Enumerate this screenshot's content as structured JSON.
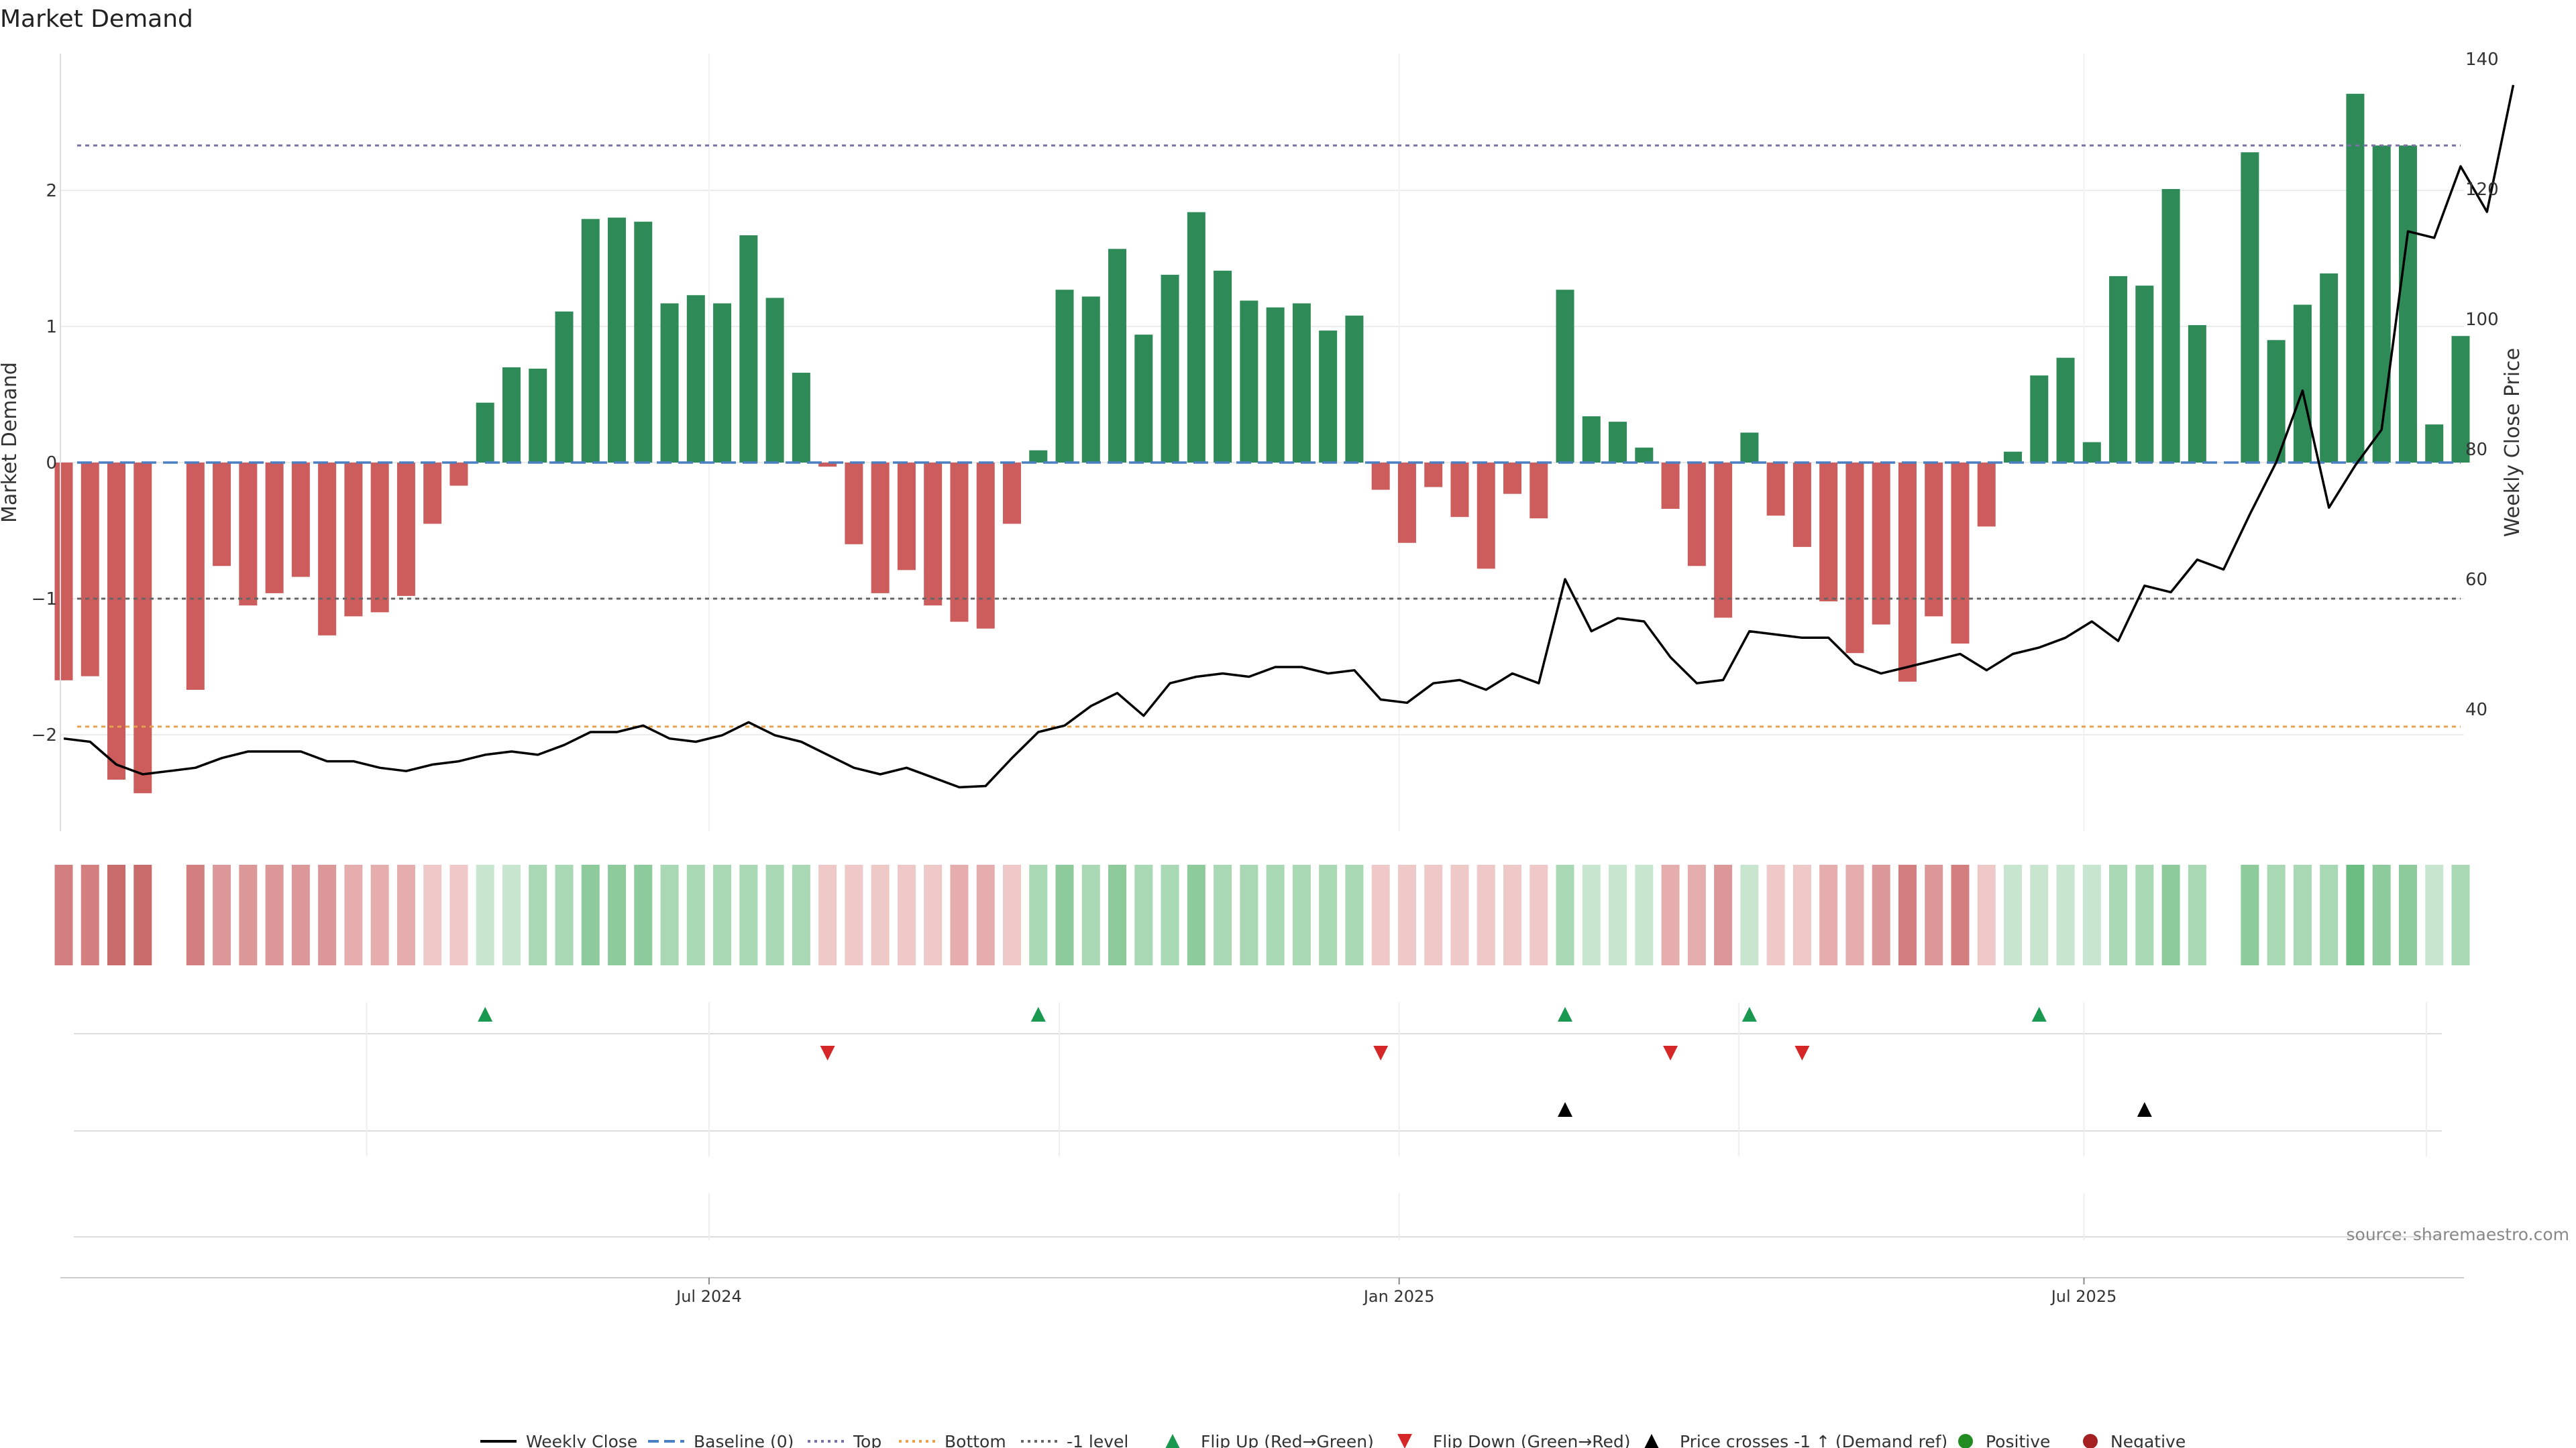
{
  "colors": {
    "positive": "#2e8b57",
    "negative": "#cd5c5c",
    "line": "#000000",
    "baseline": "#4a7fc1",
    "top": "#7b6fa8",
    "bottom": "#e8a04a",
    "minus_one": "#666666",
    "flip_up": "#1a9850",
    "flip_down": "#d62728",
    "cross": "#000000",
    "legend_pos": "#228b22",
    "legend_neg": "#a52020",
    "grid": "#ececec"
  },
  "chart_data": {
    "type": "bar+line",
    "title": "Market Demand",
    "ylabel_left": "Market Demand",
    "ylabel_right": "Weekly Close Price",
    "ylim_left": [
      -2.7,
      3.0
    ],
    "ylim_right": [
      20,
      140
    ],
    "yticks_left": [
      "2",
      "1",
      "0",
      "−1",
      "−2"
    ],
    "yticks_left_values": [
      2,
      1,
      0,
      -1,
      -2
    ],
    "yticks_right": [
      "140",
      "120",
      "100",
      "80",
      "60",
      "40"
    ],
    "yticks_right_values": [
      140,
      120,
      100,
      80,
      60,
      40
    ],
    "x_ticks": [
      "Jul 2024",
      "Jan 2025",
      "Jul 2025"
    ],
    "x_tick_weeks": [
      24.5,
      50.7,
      76.7
    ],
    "x_minor_weeks": [
      11.5,
      37.8,
      63.6,
      89.7
    ],
    "reference_lines": {
      "top": 2.33,
      "bottom": -1.94,
      "minus_one": -1.0,
      "baseline": 0
    },
    "demand": [
      -1.6,
      -1.57,
      -2.33,
      -2.43,
      null,
      -1.67,
      -0.76,
      -1.05,
      -0.96,
      -0.84,
      -1.27,
      -1.13,
      -1.1,
      -0.98,
      -0.45,
      -0.17,
      0.44,
      0.7,
      0.69,
      1.11,
      1.79,
      1.8,
      1.77,
      1.17,
      1.23,
      1.17,
      1.67,
      1.21,
      0.66,
      -0.03,
      -0.6,
      -0.96,
      -0.79,
      -1.05,
      -1.17,
      -1.22,
      -0.45,
      0.09,
      1.27,
      1.22,
      1.57,
      0.94,
      1.38,
      1.84,
      1.41,
      1.19,
      1.14,
      1.17,
      0.97,
      1.08,
      -0.2,
      -0.59,
      -0.18,
      -0.4,
      -0.78,
      -0.23,
      -0.41,
      1.27,
      0.34,
      0.3,
      0.11,
      -0.34,
      -0.76,
      -1.14,
      0.22,
      -0.39,
      -0.62,
      -1.02,
      -1.4,
      -1.19,
      -1.61,
      -1.13,
      -1.33,
      -0.47,
      0.08,
      0.64,
      0.77,
      0.15,
      1.37,
      1.3,
      2.01,
      1.01,
      null,
      2.28,
      0.9,
      1.16,
      1.39,
      2.71,
      2.33,
      2.33,
      0.28,
      0.93
    ],
    "close": [
      35.5,
      35,
      31.5,
      30,
      30.5,
      31,
      32.5,
      33.5,
      33.5,
      33.5,
      32,
      32,
      31,
      30.5,
      31.5,
      32,
      33,
      33.5,
      33,
      34.5,
      36.5,
      36.5,
      37.5,
      35.5,
      35,
      36,
      38,
      36,
      35,
      33,
      31,
      30,
      31,
      29.5,
      28,
      28.2,
      32.5,
      36.5,
      37.5,
      40.5,
      42.5,
      39,
      44,
      45,
      45.5,
      45,
      46.5,
      46.5,
      45.5,
      46,
      41.5,
      41,
      44,
      44.5,
      43,
      45.5,
      44,
      60,
      52,
      54,
      53.5,
      48,
      44,
      44.5,
      52,
      51.5,
      51,
      51,
      47,
      45.5,
      46.5,
      47.5,
      48.5,
      46,
      48.5,
      49.5,
      51,
      53.5,
      50.5,
      59,
      58,
      63,
      61.5,
      70,
      78,
      89,
      71,
      77.5,
      83,
      113.5,
      112.5,
      123.5,
      116.5,
      136
    ],
    "bar_strength": [
      4,
      4,
      5,
      5,
      null,
      4,
      3,
      3,
      3,
      3,
      3,
      2,
      2,
      2,
      1,
      1,
      1,
      1,
      2,
      2,
      3,
      3,
      3,
      2,
      2,
      2,
      2,
      2,
      2,
      1,
      1,
      1,
      1,
      1,
      2,
      2,
      1,
      2,
      3,
      2,
      3,
      2,
      2,
      3,
      2,
      2,
      2,
      2,
      2,
      2,
      1,
      1,
      1,
      1,
      1,
      1,
      1,
      2,
      1,
      1,
      1,
      2,
      2,
      3,
      1,
      1,
      1,
      2,
      2,
      3,
      4,
      3,
      4,
      1,
      1,
      1,
      1,
      1,
      2,
      2,
      3,
      2,
      null,
      3,
      2,
      2,
      2,
      4,
      3,
      3,
      1,
      2
    ],
    "flip_up_weeks": [
      16,
      37,
      57,
      64,
      75
    ],
    "flip_down_weeks": [
      29,
      50,
      61,
      66
    ],
    "cross_weeks": [
      57,
      79
    ],
    "legend": [
      "Weekly Close",
      "Baseline (0)",
      "Top",
      "Bottom",
      "-1 level",
      "Flip Up (Red→Green)",
      "Flip Down (Green→Red)",
      "Price crosses -1 ↑ (Demand ref)",
      "Positive",
      "Negative"
    ],
    "source": "source: sharemaestro.com"
  }
}
